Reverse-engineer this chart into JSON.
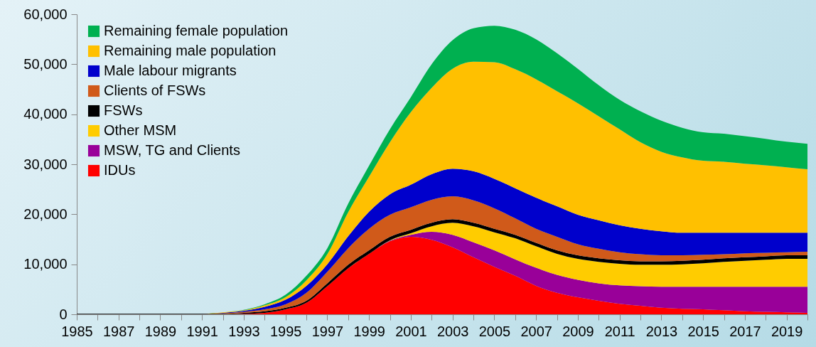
{
  "chart_data": {
    "type": "area",
    "stacked": true,
    "legend": "top left",
    "grid": false,
    "categories": [
      "1985",
      null,
      "1987",
      null,
      "1989",
      null,
      "1991",
      null,
      "1993",
      null,
      "1995",
      null,
      "1997",
      null,
      "1999",
      null,
      "2001",
      null,
      "2003",
      null,
      "2005",
      null,
      "2007",
      null,
      "2009",
      null,
      "2011",
      null,
      "2013",
      null,
      "2015",
      null,
      "2017",
      null,
      "2019",
      null
    ],
    "ylim": [
      0,
      60000
    ],
    "yticks": [
      0,
      {
        "value": 10000,
        "label": "10,000"
      },
      {
        "value": 20000,
        "label": "20,000"
      },
      {
        "value": 30000,
        "label": "30,000"
      },
      {
        "value": 40000,
        "label": "40,000"
      },
      {
        "value": 50000,
        "label": "50,000"
      },
      {
        "value": 60000,
        "label": "60,000"
      }
    ],
    "series": [
      {
        "name": "IDUs",
        "color": "#ff0000",
        "values": [
          0,
          0,
          0,
          0,
          0,
          0,
          0,
          0,
          100,
          300,
          1000,
          2300,
          5600,
          9200,
          12100,
          14600,
          15500,
          14900,
          13400,
          11400,
          9500,
          7700,
          5700,
          4300,
          3400,
          2700,
          2100,
          1700,
          1300,
          1100,
          1000,
          800,
          600,
          500,
          400,
          300
        ]
      },
      {
        "name": "MSW, TG and Clients",
        "color": "#990099",
        "values": [
          0,
          0,
          0,
          0,
          0,
          0,
          0,
          0,
          0,
          0,
          0,
          0,
          0,
          0,
          0,
          100,
          400,
          1600,
          2500,
          3000,
          3300,
          3300,
          3600,
          3600,
          3500,
          3500,
          3700,
          3900,
          4200,
          4400,
          4500,
          4700,
          4900,
          5000,
          5100,
          5200
        ]
      },
      {
        "name": "Other MSM",
        "color": "#ffcc00",
        "values": [
          0,
          0,
          0,
          0,
          0,
          0,
          0,
          0,
          0,
          0,
          0,
          0,
          0,
          0,
          0,
          100,
          300,
          1100,
          2400,
          3200,
          3600,
          4200,
          4300,
          4200,
          4200,
          4300,
          4300,
          4300,
          4400,
          4500,
          4700,
          5000,
          5200,
          5400,
          5600,
          5600
        ]
      },
      {
        "name": "FSWs",
        "color": "#000000",
        "values": [
          100,
          100,
          100,
          100,
          100,
          100,
          100,
          100,
          200,
          300,
          300,
          400,
          600,
          700,
          700,
          700,
          700,
          700,
          700,
          700,
          700,
          700,
          700,
          700,
          700,
          700,
          700,
          700,
          700,
          700,
          700,
          700,
          700,
          700,
          700,
          700
        ]
      },
      {
        "name": "Clients of FSWs",
        "color": "#d05a1a",
        "values": [
          0,
          0,
          0,
          0,
          0,
          0,
          0,
          100,
          200,
          400,
          700,
          1600,
          2300,
          3300,
          4300,
          4400,
          4500,
          4600,
          4600,
          4500,
          4100,
          3300,
          2800,
          2700,
          2200,
          1900,
          1600,
          1400,
          1200,
          1100,
          1000,
          800,
          800,
          700,
          600,
          700
        ]
      },
      {
        "name": "Male labour migrants",
        "color": "#0000cc",
        "values": [
          0,
          0,
          0,
          0,
          0,
          0,
          0,
          100,
          200,
          500,
          900,
          1400,
          1500,
          2400,
          3400,
          4100,
          4500,
          5100,
          5500,
          5800,
          5900,
          6000,
          6200,
          6100,
          5900,
          5700,
          5400,
          5100,
          4800,
          4500,
          4400,
          4300,
          4100,
          4000,
          3900,
          3800
        ]
      },
      {
        "name": "Remaining male population",
        "color": "#ffc000",
        "values": [
          0,
          0,
          0,
          0,
          0,
          0,
          0,
          100,
          100,
          300,
          500,
          1100,
          2000,
          4800,
          7000,
          10400,
          14500,
          17300,
          20000,
          21900,
          23300,
          23800,
          23700,
          23000,
          22300,
          20800,
          19200,
          17300,
          15900,
          15100,
          14400,
          14200,
          13800,
          13500,
          13100,
          12700
        ]
      },
      {
        "name": "Remaining female population",
        "color": "#00b050",
        "values": [
          0,
          0,
          0,
          0,
          0,
          0,
          0,
          0,
          100,
          200,
          500,
          900,
          1200,
          1700,
          2200,
          2600,
          3000,
          4700,
          5700,
          6700,
          7300,
          7900,
          8000,
          7600,
          6900,
          6200,
          5900,
          6200,
          6200,
          5900,
          5700,
          5600,
          5500,
          5300,
          5100,
          5100
        ]
      }
    ]
  }
}
